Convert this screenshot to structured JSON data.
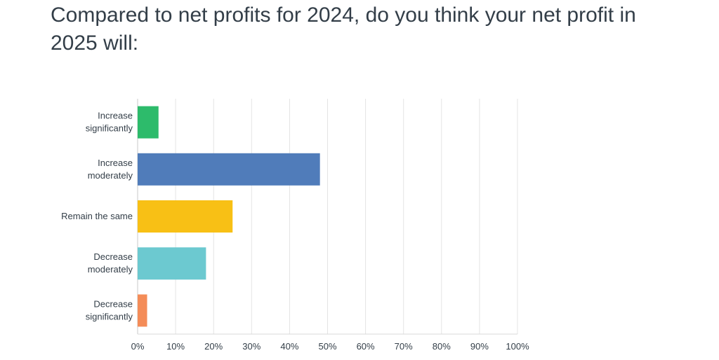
{
  "title": "Compared to net profits for 2024, do you think your net profit in 2025 will:",
  "chart_data": {
    "type": "bar",
    "orientation": "horizontal",
    "categories": [
      [
        "Increase",
        "significantly"
      ],
      [
        "Increase",
        "moderately"
      ],
      [
        "Remain the same"
      ],
      [
        "Decrease",
        "moderately"
      ],
      [
        "Decrease",
        "significantly"
      ]
    ],
    "values": [
      5.5,
      48,
      25,
      18,
      2.5
    ],
    "colors": [
      "#2dbb6b",
      "#507cba",
      "#f8c015",
      "#6cc9d0",
      "#f48c58"
    ],
    "xlim": [
      0,
      100
    ],
    "xticks": [
      "0%",
      "10%",
      "20%",
      "30%",
      "40%",
      "50%",
      "60%",
      "70%",
      "80%",
      "90%",
      "100%"
    ],
    "grid": true,
    "xlabel": "",
    "ylabel": ""
  }
}
